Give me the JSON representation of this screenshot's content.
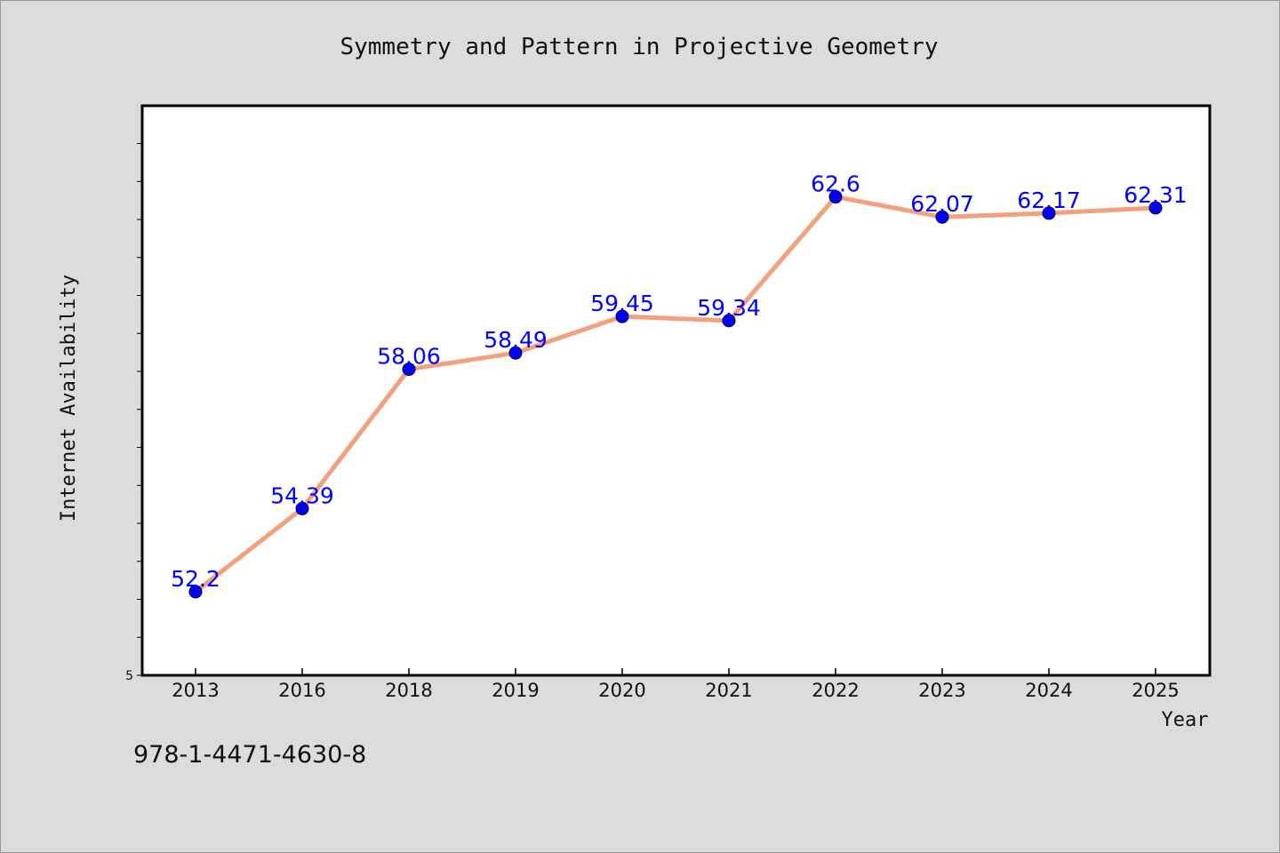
{
  "chart_data": {
    "type": "line",
    "title": "Symmetry and Pattern in Projective Geometry",
    "xlabel": "Year",
    "ylabel": "Internet Availability",
    "categories": [
      "2013",
      "2016",
      "2018",
      "2019",
      "2020",
      "2021",
      "2022",
      "2023",
      "2024",
      "2025"
    ],
    "series": [
      {
        "values": [
          52.2,
          54.39,
          58.06,
          58.49,
          59.45,
          59.34,
          62.6,
          62.07,
          62.17,
          62.31
        ],
        "data_labels": [
          "52.2",
          "54.39",
          "58.06",
          "58.49",
          "59.45",
          "59.34",
          "62.6",
          "62.07",
          "62.17",
          "62.31"
        ],
        "line_color": "#f4a07c",
        "marker_color": "#0000ff"
      }
    ],
    "ylim": [
      50.0,
      65.0
    ],
    "y_tick_labels": [
      "5"
    ],
    "grid": false,
    "legend": "none",
    "plot_background": "#ffffff",
    "figure_background": "#dcdcdc"
  },
  "footer": {
    "isbn": "978-1-4471-4630-8"
  }
}
